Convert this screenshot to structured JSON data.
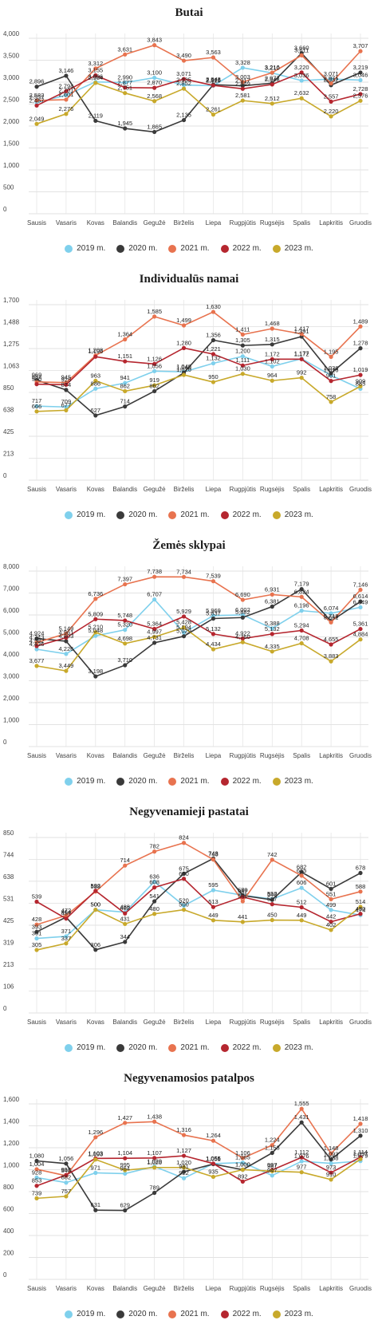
{
  "chart_data": [
    {
      "type": "line",
      "title": "Butai",
      "categories": [
        "Sausis",
        "Vasaris",
        "Kovas",
        "Balandis",
        "Gegužė",
        "Birželis",
        "Liepa",
        "Rugpjūtis",
        "Rugsėjis",
        "Spalis",
        "Lapkritis",
        "Gruodis"
      ],
      "yticks": [
        0,
        500,
        1000,
        1500,
        2000,
        2500,
        3000,
        3500,
        4000
      ],
      "ytick_labels": [
        "0",
        "500",
        "1,000",
        "1,500",
        "2,000",
        "2,500",
        "3,000",
        "3,500",
        "4,000"
      ],
      "ylim": [
        0,
        4000
      ],
      "series": [
        {
          "name": "2019 m.",
          "color": "#7fd0ec",
          "values": [
            2537,
            2701,
            3006,
            2990,
            3100,
            2935,
            2919,
            3328,
            3210,
            3036,
            3071,
            3046
          ]
        },
        {
          "name": "2020 m.",
          "color": "#3a3a3a",
          "values": [
            2896,
            3146,
            2119,
            1945,
            1865,
            2135,
            2943,
            2917,
            2977,
            3660,
            2932,
            3219
          ]
        },
        {
          "name": "2021 m.",
          "color": "#e8734f",
          "values": [
            2582,
            2601,
            3312,
            3631,
            3843,
            3490,
            3563,
            3003,
            3216,
            3611,
            2971,
            3707
          ]
        },
        {
          "name": "2022 m.",
          "color": "#b5262f",
          "values": [
            2467,
            2794,
            3155,
            2877,
            2870,
            3071,
            2926,
            2849,
            2948,
            3220,
            2557,
            2728
          ]
        },
        {
          "name": "2023 m.",
          "color": "#c8a92b",
          "values": [
            2049,
            2276,
            2984,
            2751,
            2568,
            2852,
            2261,
            2581,
            2512,
            2632,
            2220,
            2576
          ]
        }
      ]
    },
    {
      "type": "line",
      "title": "Individualūs namai",
      "categories": [
        "Sausis",
        "Vasaris",
        "Kovas",
        "Balandis",
        "Gegužė",
        "Birželis",
        "Liepa",
        "Rugpjūtis",
        "Rugsėjis",
        "Spalis",
        "Lapkritis",
        "Gruodis"
      ],
      "yticks": [
        0,
        213,
        425,
        638,
        850,
        1063,
        1275,
        1488,
        1700
      ],
      "ytick_labels": [
        "0",
        "213",
        "425",
        "638",
        "850",
        "1,063",
        "1,275",
        "1,488",
        "1,700"
      ],
      "ylim": [
        0,
        1700
      ],
      "series": [
        {
          "name": "2019 m.",
          "color": "#7fd0ec",
          "values": [
            717,
            709,
            886,
            941,
            1056,
            1049,
            1132,
            1200,
            1102,
            1177,
            1016,
            885
          ]
        },
        {
          "name": "2020 m.",
          "color": "#3a3a3a",
          "values": [
            969,
            874,
            627,
            714,
            862,
            1040,
            1356,
            1305,
            1315,
            1391,
            1036,
            1278
          ]
        },
        {
          "name": "2021 m.",
          "color": "#e8734f",
          "values": [
            952,
            945,
            1208,
            1364,
            1585,
            1499,
            1630,
            1411,
            1468,
            1417,
            1195,
            1489
          ]
        },
        {
          "name": "2022 m.",
          "color": "#b5262f",
          "values": [
            930,
            925,
            1196,
            1151,
            1126,
            1280,
            1221,
            1111,
            1172,
            1172,
            961,
            1019
          ]
        },
        {
          "name": "2023 m.",
          "color": "#c8a92b",
          "values": [
            666,
            677,
            963,
            862,
            919,
            1020,
            950,
            1030,
            964,
            992,
            758,
            909
          ]
        }
      ]
    },
    {
      "type": "line",
      "title": "Žemės sklypai",
      "categories": [
        "Sausis",
        "Vasaris",
        "Kovas",
        "Balandis",
        "Gegužė",
        "Birželis",
        "Liepa",
        "Rugpjūtis",
        "Rugsėjis",
        "Spalis",
        "Lapkritis",
        "Gruodis"
      ],
      "yticks": [
        0,
        1000,
        2000,
        3000,
        4000,
        5000,
        6000,
        7000,
        8000
      ],
      "ytick_labels": [
        "0",
        "1,000",
        "2,000",
        "3,000",
        "4,000",
        "5,000",
        "6,000",
        "7,000",
        "8,000"
      ],
      "ylim": [
        0,
        8000
      ],
      "series": [
        {
          "name": "2019 m.",
          "color": "#7fd0ec",
          "values": [
            4436,
            4226,
            5048,
            5320,
            6707,
            5194,
            5969,
            6002,
            5388,
            6196,
            6074,
            6349
          ]
        },
        {
          "name": "2020 m.",
          "color": "#3a3a3a",
          "values": [
            4924,
            4803,
            3198,
            3710,
            4731,
            5029,
            5837,
            5882,
            6381,
            7179,
            5718,
            6614
          ]
        },
        {
          "name": "2021 m.",
          "color": "#e8734f",
          "values": [
            4743,
            5149,
            6736,
            7397,
            7738,
            7734,
            7539,
            6690,
            6931,
            6824,
            5661,
            7146
          ]
        },
        {
          "name": "2022 m.",
          "color": "#b5262f",
          "values": [
            4582,
            4961,
            5809,
            5748,
            5364,
            5929,
            5132,
            4922,
            5132,
            5294,
            4655,
            5361
          ]
        },
        {
          "name": "2023 m.",
          "color": "#c8a92b",
          "values": [
            3677,
            3449,
            5210,
            4698,
            4997,
            5428,
            4434,
            4760,
            4335,
            4708,
            3883,
            4884
          ]
        }
      ]
    },
    {
      "type": "line",
      "title": "Negyvenamieji pastatai",
      "categories": [
        "Sausis",
        "Vasaris",
        "Kovas",
        "Balandis",
        "Gegužė",
        "Birželis",
        "Liepa",
        "Rugpjūtis",
        "Rugsėjis",
        "Spalis",
        "Lapkritis",
        "Gruodis"
      ],
      "yticks": [
        0,
        106,
        213,
        319,
        425,
        531,
        638,
        744,
        850
      ],
      "ytick_labels": [
        "0",
        "106",
        "213",
        "319",
        "425",
        "531",
        "638",
        "744",
        "850"
      ],
      "ylim": [
        0,
        850
      ],
      "series": [
        {
          "name": "2019 m.",
          "color": "#7fd0ec",
          "values": [
            361,
            371,
            500,
            488,
            636,
            520,
            595,
            570,
            552,
            606,
            499,
            474
          ]
        },
        {
          "name": "2020 m.",
          "color": "#3a3a3a",
          "values": [
            393,
            464,
            306,
            344,
            541,
            675,
            748,
            569,
            548,
            682,
            601,
            678
          ]
        },
        {
          "name": "2021 m.",
          "color": "#e8734f",
          "values": [
            428,
            472,
            588,
            714,
            782,
            824,
            743,
            541,
            742,
            665,
            551,
            588
          ]
        },
        {
          "name": "2022 m.",
          "color": "#b5262f",
          "values": [
            539,
            457,
            592,
            482,
            608,
            650,
            513,
            562,
            527,
            512,
            442,
            480
          ]
        },
        {
          "name": "2023 m.",
          "color": "#c8a92b",
          "values": [
            305,
            337,
            500,
            431,
            480,
            500,
            449,
            441,
            450,
            449,
            402,
            514
          ]
        }
      ]
    },
    {
      "type": "line",
      "title": "Negyvenamosios patalpos",
      "categories": [
        "Sausis",
        "Vasaris",
        "Kovas",
        "Balandis",
        "Gegužė",
        "Birželis",
        "Liepa",
        "Rugpjūtis",
        "Rugsėjis",
        "Spalis",
        "Lapkritis",
        "Gruodis"
      ],
      "yticks": [
        0,
        200,
        400,
        600,
        800,
        1000,
        1200,
        1400,
        1600
      ],
      "ytick_labels": [
        "0",
        "200",
        "400",
        "600",
        "800",
        "1,000",
        "1,200",
        "1,400",
        "1,600"
      ],
      "ylim": [
        0,
        1600
      ],
      "series": [
        {
          "name": "2019 m.",
          "color": "#7fd0ec",
          "values": [
            928,
            882,
            971,
            964,
            1029,
            922,
            1055,
            1065,
            947,
            1076,
            1058,
            1079
          ]
        },
        {
          "name": "2020 m.",
          "color": "#3a3a3a",
          "values": [
            1080,
            1056,
            631,
            629,
            789,
            981,
            1051,
            1000,
            1153,
            1431,
            1093,
            1310
          ]
        },
        {
          "name": "2021 m.",
          "color": "#e8734f",
          "values": [
            1004,
            945,
            1296,
            1427,
            1438,
            1316,
            1264,
            1106,
            1224,
            1555,
            1148,
            1418
          ]
        },
        {
          "name": "2022 m.",
          "color": "#b5262f",
          "values": [
            853,
            952,
            1103,
            1104,
            1107,
            1127,
            1056,
            892,
            997,
            1112,
            973,
            1114
          ]
        },
        {
          "name": "2023 m.",
          "color": "#c8a92b",
          "values": [
            739,
            757,
            1093,
            995,
            1020,
            1020,
            935,
            1000,
            987,
            977,
            910,
            1097
          ]
        }
      ]
    }
  ]
}
